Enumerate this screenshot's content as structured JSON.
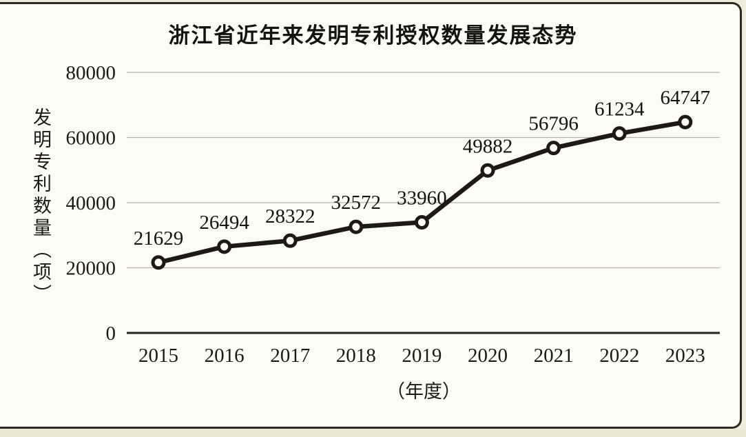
{
  "page": {
    "background": "#f0ecdb",
    "panel_background": "#fcfbf4",
    "frame_color": "#2b2a26"
  },
  "chart_data": {
    "type": "line",
    "title": "浙江省近年来发明专利授权数量发展态势",
    "categories": [
      "2015",
      "2016",
      "2017",
      "2018",
      "2019",
      "2020",
      "2021",
      "2022",
      "2023"
    ],
    "values": [
      21629,
      26494,
      28322,
      32572,
      33960,
      49882,
      56796,
      61234,
      64747
    ],
    "data_labels": [
      "21629",
      "26494",
      "28322",
      "32572",
      "33960",
      "49882",
      "56796",
      "61234",
      "64747"
    ],
    "xlabel": "（年度）",
    "ylabel": "发明专利数量（项）",
    "ylim": [
      0,
      80000
    ],
    "yticks": [
      0,
      20000,
      40000,
      60000,
      80000
    ],
    "ytick_labels": [
      "0",
      "20000",
      "40000",
      "60000",
      "80000"
    ],
    "grid": true,
    "legend": "none",
    "line_color": "#1d1a16",
    "marker": "open-circle",
    "marker_fill": "#fcfbf4",
    "gridline_color": "#b7b3a6",
    "axis_color": "#24221e"
  }
}
